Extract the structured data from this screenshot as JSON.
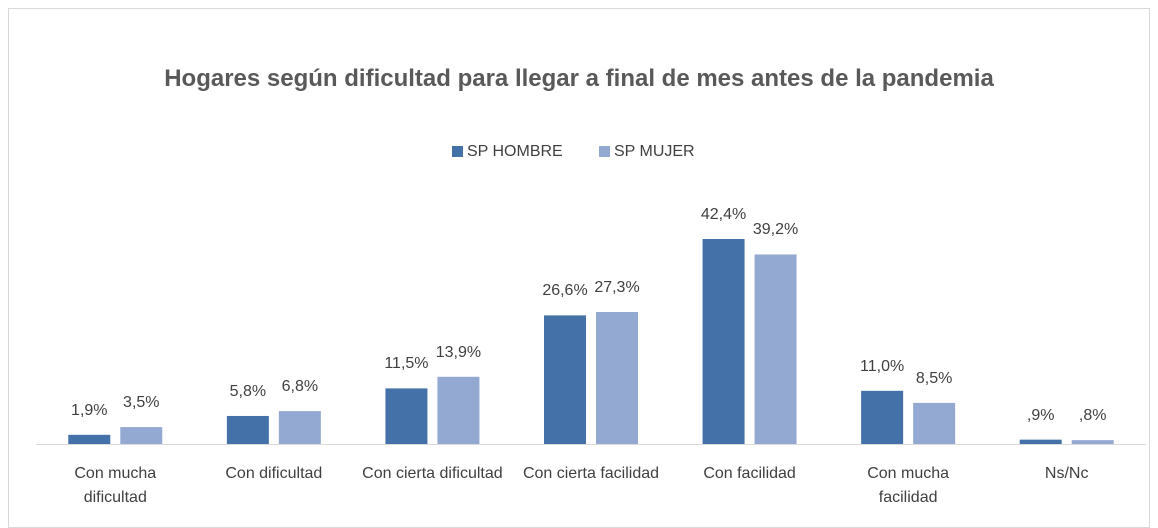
{
  "chart_data": {
    "type": "bar",
    "title": "Hogares según dificultad para llegar a final de mes antes de la pandemia",
    "categories": [
      "Con mucha dificultad",
      "Con dificultad",
      "Con cierta dificultad",
      "Con cierta facilidad",
      "Con facilidad",
      "Con mucha facilidad",
      "Ns/Nc"
    ],
    "series": [
      {
        "name": "SP HOMBRE",
        "color": "#4472a8",
        "values": [
          1.9,
          5.8,
          11.5,
          26.6,
          42.4,
          11.0,
          0.9
        ],
        "value_labels": [
          "1,9%",
          "5,8%",
          "11,5%",
          "26,6%",
          "42,4%",
          "11,0%",
          ",9%"
        ]
      },
      {
        "name": "SP MUJER",
        "color": "#94a9d2",
        "values": [
          3.5,
          6.8,
          13.9,
          27.3,
          39.2,
          8.5,
          0.8
        ],
        "value_labels": [
          "3,5%",
          "6,8%",
          "13,9%",
          "27,3%",
          "39,2%",
          "8,5%",
          ",8%"
        ]
      }
    ],
    "legend": "top"
  }
}
